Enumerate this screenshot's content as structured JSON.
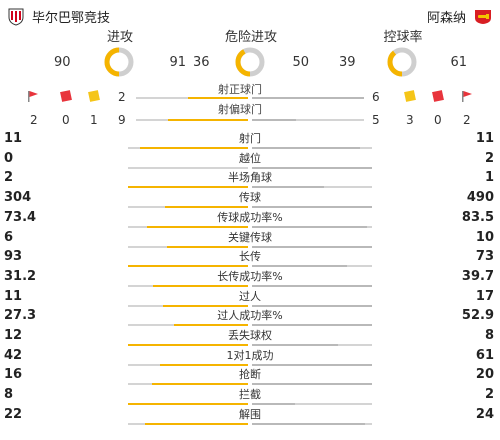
{
  "home": {
    "name": "毕尔巴鄂竞技"
  },
  "away": {
    "name": "阿森纳"
  },
  "donuts": [
    {
      "title": "进攻",
      "home": 90,
      "away": 91
    },
    {
      "title": "危险进攻",
      "home": 36,
      "away": 50
    },
    {
      "title": "控球率",
      "home": 39,
      "away": 61
    }
  ],
  "shots_on": {
    "label": "射正球门",
    "home": "2",
    "away": "6"
  },
  "shots_off": {
    "label": "射偏球门",
    "home": "9",
    "away": "5"
  },
  "cards": {
    "home_corner": "2",
    "home_red": "0",
    "home_yellow": "1",
    "away_yellow": "3",
    "away_red": "0",
    "away_corner": "2"
  },
  "colors": {
    "accent": "#f5b400",
    "track": "#d4d4d4",
    "red_card": "#e8343c",
    "yellow_card": "#f5c518",
    "arsenal": "#d81e23"
  },
  "stats": [
    {
      "label": "射门",
      "home": "11",
      "away": "11",
      "h": 11,
      "a": 11
    },
    {
      "label": "越位",
      "home": "0",
      "away": "2",
      "h": 0,
      "a": 2
    },
    {
      "label": "半场角球",
      "home": "2",
      "away": "1",
      "h": 2,
      "a": 1
    },
    {
      "label": "传球",
      "home": "304",
      "away": "490",
      "h": 304,
      "a": 490
    },
    {
      "label": "传球成功率%",
      "home": "73.4",
      "away": "83.5",
      "h": 73.4,
      "a": 83.5
    },
    {
      "label": "关键传球",
      "home": "6",
      "away": "10",
      "h": 6,
      "a": 10
    },
    {
      "label": "长传",
      "home": "93",
      "away": "73",
      "h": 93,
      "a": 73
    },
    {
      "label": "长传成功率%",
      "home": "31.2",
      "away": "39.7",
      "h": 31.2,
      "a": 39.7
    },
    {
      "label": "过人",
      "home": "11",
      "away": "17",
      "h": 11,
      "a": 17
    },
    {
      "label": "过人成功率%",
      "home": "27.3",
      "away": "52.9",
      "h": 27.3,
      "a": 52.9
    },
    {
      "label": "丢失球权",
      "home": "12",
      "away": "8",
      "h": 12,
      "a": 8
    },
    {
      "label": "1对1成功",
      "home": "42",
      "away": "61",
      "h": 42,
      "a": 61
    },
    {
      "label": "抢断",
      "home": "16",
      "away": "20",
      "h": 16,
      "a": 20
    },
    {
      "label": "拦截",
      "home": "8",
      "away": "2",
      "h": 8,
      "a": 2
    },
    {
      "label": "解围",
      "home": "22",
      "away": "24",
      "h": 22,
      "a": 24
    }
  ]
}
